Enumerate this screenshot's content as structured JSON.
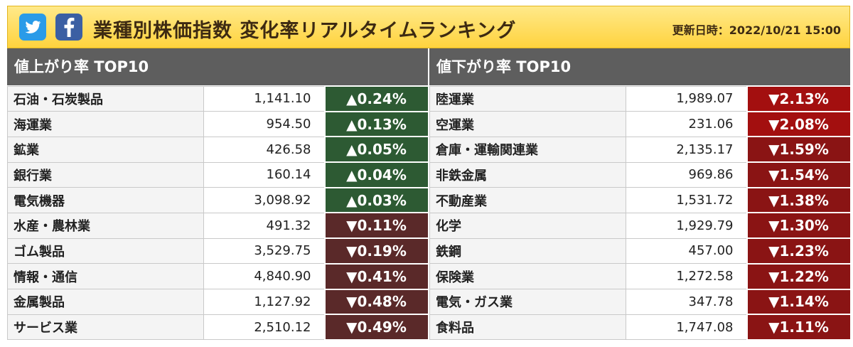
{
  "header": {
    "title": "業種別株価指数 変化率リアルタイムランキング",
    "updated": "更新日時：2022/10/21 15:00",
    "social": [
      "twitter-icon",
      "facebook-icon"
    ],
    "colors": {
      "header_bg": "#ffd33e",
      "up": "#2d5a33",
      "down_dark": "#5a2929",
      "down_red": "#a30f0f"
    }
  },
  "gainers": {
    "heading": "値上がり率 TOP10",
    "rows": [
      {
        "name": "石油・石炭製品",
        "value": "1,141.10",
        "change": "▲0.24%",
        "dir": "up"
      },
      {
        "name": "海運業",
        "value": "954.50",
        "change": "▲0.13%",
        "dir": "up"
      },
      {
        "name": "鉱業",
        "value": "426.58",
        "change": "▲0.05%",
        "dir": "up"
      },
      {
        "name": "銀行業",
        "value": "160.14",
        "change": "▲0.04%",
        "dir": "up"
      },
      {
        "name": "電気機器",
        "value": "3,098.92",
        "change": "▲0.03%",
        "dir": "up"
      },
      {
        "name": "水産・農林業",
        "value": "491.32",
        "change": "▼0.11%",
        "dir": "down"
      },
      {
        "name": "ゴム製品",
        "value": "3,529.75",
        "change": "▼0.19%",
        "dir": "down"
      },
      {
        "name": "情報・通信",
        "value": "4,840.90",
        "change": "▼0.41%",
        "dir": "down"
      },
      {
        "name": "金属製品",
        "value": "1,127.92",
        "change": "▼0.48%",
        "dir": "down"
      },
      {
        "name": "サービス業",
        "value": "2,510.12",
        "change": "▼0.49%",
        "dir": "down"
      }
    ]
  },
  "losers": {
    "heading": "値下がり率 TOP10",
    "rows": [
      {
        "name": "陸運業",
        "value": "1,989.07",
        "change": "▼2.13%",
        "dir": "down-strong"
      },
      {
        "name": "空運業",
        "value": "231.06",
        "change": "▼2.08%",
        "dir": "down-strong"
      },
      {
        "name": "倉庫・運輸関連業",
        "value": "2,135.17",
        "change": "▼1.59%",
        "dir": "down-mid"
      },
      {
        "name": "非鉄金属",
        "value": "969.86",
        "change": "▼1.54%",
        "dir": "down-mid"
      },
      {
        "name": "不動産業",
        "value": "1,531.72",
        "change": "▼1.38%",
        "dir": "down-mid"
      },
      {
        "name": "化学",
        "value": "1,929.79",
        "change": "▼1.30%",
        "dir": "down-mid"
      },
      {
        "name": "鉄鋼",
        "value": "457.00",
        "change": "▼1.23%",
        "dir": "down-mid"
      },
      {
        "name": "保険業",
        "value": "1,272.58",
        "change": "▼1.22%",
        "dir": "down-mid"
      },
      {
        "name": "電気・ガス業",
        "value": "347.78",
        "change": "▼1.14%",
        "dir": "down-mid"
      },
      {
        "name": "食料品",
        "value": "1,747.08",
        "change": "▼1.11%",
        "dir": "down-mid"
      }
    ]
  }
}
